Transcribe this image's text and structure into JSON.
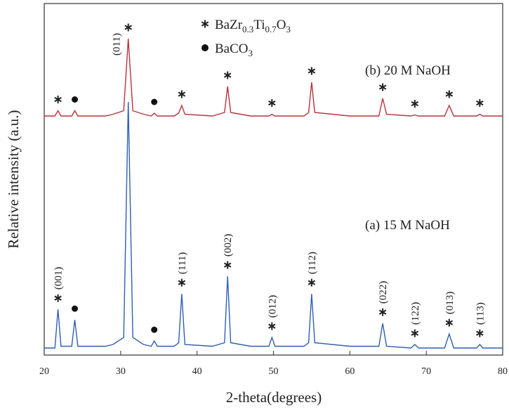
{
  "chart_data": {
    "type": "line",
    "xlabel": "2-theta(degrees)",
    "ylabel": "Relative intensity (a.u.)",
    "x": [
      20,
      21,
      21.4,
      21.8,
      22.2,
      23.6,
      24,
      24.4,
      28,
      29,
      30.4,
      31,
      31.6,
      33,
      34,
      34.4,
      34.8,
      37,
      37.6,
      38,
      38.4,
      42,
      43.6,
      44,
      44.4,
      47,
      49.4,
      49.8,
      50.2,
      54,
      54.6,
      55,
      55.4,
      60,
      63.8,
      64.3,
      64.8,
      68,
      68.5,
      69,
      72.4,
      73,
      73.6,
      76.6,
      77,
      77.4,
      80
    ],
    "series": [
      {
        "name": "(a) 15 M NaOH",
        "color": "#2f5fb3",
        "values": [
          2,
          2,
          2,
          13,
          2.5,
          2.5,
          10,
          2.5,
          2.5,
          3,
          5,
          72,
          5,
          3,
          2.5,
          4,
          2.5,
          2.5,
          3.5,
          17.4,
          3,
          2.5,
          3.5,
          22.4,
          3.5,
          2.5,
          2.5,
          5,
          2.5,
          2.5,
          3.5,
          17.4,
          3.5,
          2.5,
          2.5,
          9,
          2.5,
          2,
          3,
          2,
          2,
          6,
          2,
          2,
          3,
          2,
          2
        ]
      },
      {
        "name": "(b) 20 M NaOH",
        "color": "#b8323c",
        "values": [
          68,
          68,
          68,
          69.5,
          68,
          68,
          69.5,
          68,
          68,
          68.5,
          69.5,
          90,
          69.5,
          68.5,
          68,
          68.8,
          68,
          68,
          68.8,
          71,
          68.5,
          68,
          69,
          76.4,
          69,
          68,
          68,
          68.5,
          68,
          68,
          69,
          77.6,
          69,
          68,
          68,
          73,
          68.5,
          68,
          68.3,
          68,
          68,
          71,
          68,
          68,
          68.5,
          68,
          68
        ]
      }
    ],
    "xlim": [
      20,
      80
    ],
    "xticks": [
      20,
      30,
      40,
      50,
      60,
      70,
      80
    ],
    "ylim": [
      0,
      100
    ],
    "legend": [
      {
        "kind": "star",
        "formula": [
          "BaZr",
          "0.3",
          "Ti",
          "0.7",
          "O",
          "3"
        ]
      },
      {
        "kind": "dot",
        "formula": [
          "BaCO",
          "3"
        ]
      }
    ],
    "markers": [
      {
        "series": 0,
        "x": 21.8,
        "kind": "star",
        "label": "(001)"
      },
      {
        "series": 0,
        "x": 24,
        "kind": "dot"
      },
      {
        "series": 0,
        "x": 34.4,
        "kind": "dot"
      },
      {
        "series": 0,
        "x": 38,
        "kind": "star",
        "label": "(111)"
      },
      {
        "series": 0,
        "x": 44,
        "kind": "star",
        "label": "(002)"
      },
      {
        "series": 0,
        "x": 49.8,
        "kind": "star",
        "label": "(012)"
      },
      {
        "series": 0,
        "x": 55,
        "kind": "star",
        "label": "(112)"
      },
      {
        "series": 0,
        "x": 64.3,
        "kind": "star",
        "label": "(022)"
      },
      {
        "series": 0,
        "x": 68.5,
        "kind": "star",
        "label": "(122)"
      },
      {
        "series": 0,
        "x": 73,
        "kind": "star",
        "label": "(013)"
      },
      {
        "series": 0,
        "x": 77,
        "kind": "star",
        "label": "(113)"
      },
      {
        "series": 1,
        "x": 21.8,
        "kind": "star"
      },
      {
        "series": 1,
        "x": 24,
        "kind": "dot"
      },
      {
        "series": 1,
        "x": 31,
        "kind": "star",
        "label": "(011)"
      },
      {
        "series": 1,
        "x": 34.4,
        "kind": "dot"
      },
      {
        "series": 1,
        "x": 38,
        "kind": "star"
      },
      {
        "series": 1,
        "x": 44,
        "kind": "star"
      },
      {
        "series": 1,
        "x": 49.8,
        "kind": "star"
      },
      {
        "series": 1,
        "x": 55,
        "kind": "star"
      },
      {
        "series": 1,
        "x": 64.3,
        "kind": "star"
      },
      {
        "series": 1,
        "x": 68.5,
        "kind": "star"
      },
      {
        "series": 1,
        "x": 73,
        "kind": "star"
      },
      {
        "series": 1,
        "x": 77,
        "kind": "star"
      }
    ]
  }
}
